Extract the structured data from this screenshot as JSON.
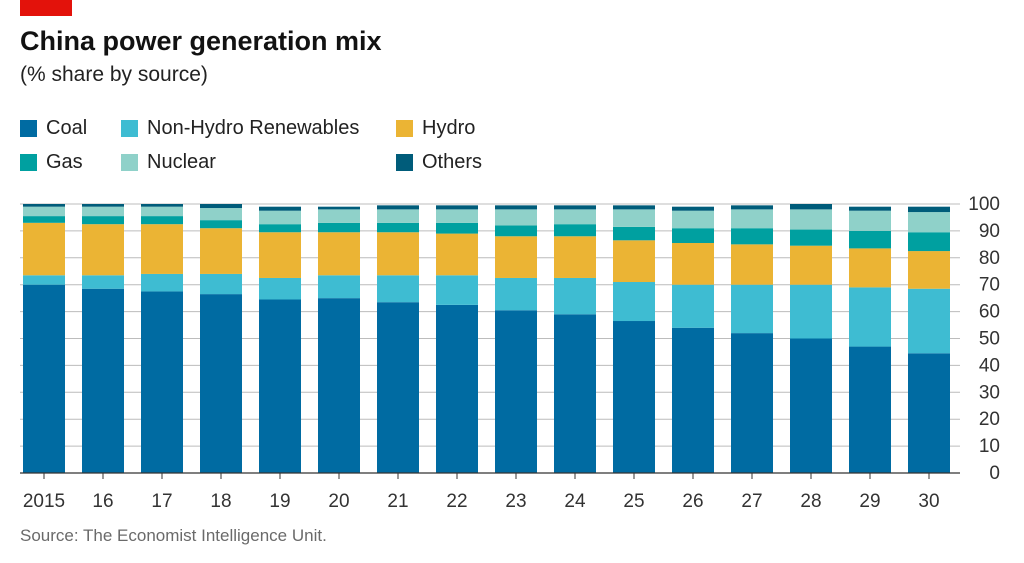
{
  "header": {
    "title": "China power generation mix",
    "subtitle": "(% share by source)"
  },
  "source": "Source: The Economist Intelligence Unit.",
  "colors": {
    "accent_red": "#e3120b",
    "grid": "#bcbcbc",
    "axis": "#333333"
  },
  "chart_data": {
    "type": "bar",
    "stacked": true,
    "title": "China power generation mix",
    "subtitle": "(% share by source)",
    "categories": [
      "2015",
      "16",
      "17",
      "18",
      "19",
      "20",
      "21",
      "22",
      "23",
      "24",
      "25",
      "26",
      "27",
      "28",
      "29",
      "30"
    ],
    "ylim": [
      0,
      100
    ],
    "yticks": [
      0,
      10,
      20,
      30,
      40,
      50,
      60,
      70,
      80,
      90,
      100
    ],
    "grid": true,
    "y_axis_position": "right",
    "legend_position": "top-left",
    "series": [
      {
        "name": "Coal",
        "color": "#006ba2",
        "values": [
          70,
          68.5,
          67.5,
          66.5,
          64.5,
          65,
          63.5,
          62.5,
          60.5,
          59,
          56.5,
          54,
          52,
          50,
          47,
          44.5
        ]
      },
      {
        "name": "Non-Hydro Renewables",
        "color": "#3ebcd2",
        "values": [
          3.5,
          5,
          6.5,
          7.5,
          8,
          8.5,
          10,
          11,
          12,
          13.5,
          14.5,
          16,
          18,
          20,
          22,
          24
        ]
      },
      {
        "name": "Hydro",
        "color": "#ebb434",
        "values": [
          19.5,
          19,
          18.5,
          17,
          17,
          16,
          16,
          15.5,
          15.5,
          15.5,
          15.5,
          15.5,
          15,
          14.5,
          14.5,
          14
        ]
      },
      {
        "name": "Gas",
        "color": "#00a0a0",
        "values": [
          2.5,
          3,
          3,
          3,
          3,
          3.5,
          3.5,
          4,
          4,
          4.5,
          5,
          5.5,
          6,
          6,
          6.5,
          7
        ]
      },
      {
        "name": "Nuclear",
        "color": "#8fd1c9",
        "values": [
          3.5,
          3.5,
          3.5,
          4.5,
          5,
          5,
          5,
          5,
          6,
          5.5,
          6.5,
          6.5,
          7,
          7.5,
          7.5,
          7.5
        ]
      },
      {
        "name": "Others",
        "color": "#005c7a",
        "values": [
          1,
          1,
          1,
          1.5,
          1.5,
          1,
          1.5,
          1.5,
          1.5,
          1.5,
          1.5,
          1.5,
          1.5,
          2,
          1.5,
          2
        ]
      }
    ],
    "source": "Source: The Economist Intelligence Unit."
  }
}
